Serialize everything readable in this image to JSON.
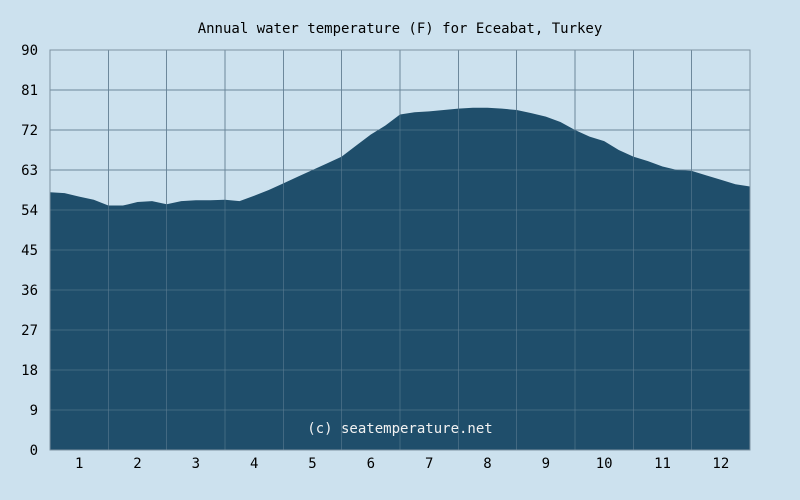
{
  "chart_data": {
    "type": "area",
    "title": "Annual water temperature (F) for Eceabat, Turkey",
    "watermark": "(c) seatemperature.net",
    "xlabel": "",
    "ylabel": "",
    "categories": [
      "1",
      "2",
      "3",
      "4",
      "5",
      "6",
      "7",
      "8",
      "9",
      "10",
      "11",
      "12"
    ],
    "x_range": [
      0.5,
      12.5
    ],
    "ylim": [
      0,
      90
    ],
    "yticks": [
      0,
      9,
      18,
      27,
      36,
      45,
      54,
      63,
      72,
      81,
      90
    ],
    "grid": true,
    "series": [
      {
        "x": [
          0.5,
          0.75,
          1.0,
          1.25,
          1.5,
          1.75,
          2.0,
          2.25,
          2.5,
          2.75,
          3.0,
          3.25,
          3.5,
          3.75,
          4.0,
          4.25,
          4.5,
          4.75,
          5.0,
          5.25,
          5.5,
          5.75,
          6.0,
          6.25,
          6.5,
          6.75,
          7.0,
          7.25,
          7.5,
          7.75,
          8.0,
          8.25,
          8.5,
          8.75,
          9.0,
          9.25,
          9.5,
          9.75,
          10.0,
          10.25,
          10.5,
          10.75,
          11.0,
          11.25,
          11.5,
          11.75,
          12.0,
          12.25,
          12.5
        ],
        "values": [
          58.0,
          57.8,
          57.0,
          56.3,
          55.0,
          55.0,
          55.8,
          56.0,
          55.3,
          56.0,
          56.2,
          56.2,
          56.3,
          56.0,
          57.2,
          58.5,
          60.0,
          61.5,
          63.0,
          64.5,
          66.0,
          68.5,
          71.0,
          73.0,
          75.5,
          76.0,
          76.2,
          76.5,
          76.8,
          77.0,
          77.0,
          76.8,
          76.5,
          75.8,
          75.0,
          73.8,
          72.0,
          70.5,
          69.5,
          67.5,
          66.0,
          65.0,
          63.8,
          63.0,
          62.8,
          61.8,
          60.8,
          59.8,
          59.3
        ]
      }
    ],
    "colors": {
      "fill": "#1f4e6b",
      "grid": "#7e93a2",
      "background": "#cce1ee",
      "plot_background": "#cce1ee"
    }
  }
}
